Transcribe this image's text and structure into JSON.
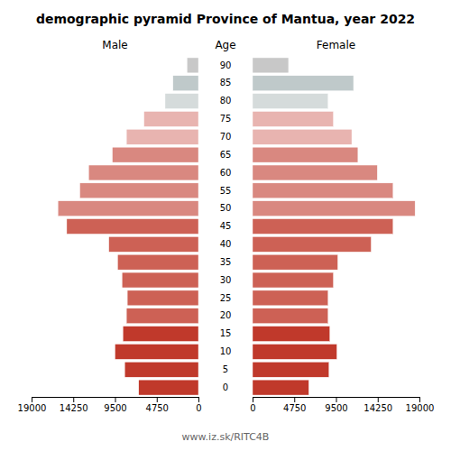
{
  "chart_data": {
    "type": "bar",
    "orientation": "horizontal",
    "title": "demographic pyramid Province of Mantua, year 2022",
    "ylabel": "Age",
    "annotations": [
      "www.iz.sk/RITC4B"
    ],
    "categories": [
      "0",
      "5",
      "10",
      "15",
      "20",
      "25",
      "30",
      "35",
      "40",
      "45",
      "50",
      "55",
      "60",
      "65",
      "70",
      "75",
      "80",
      "85",
      "90"
    ],
    "colors": [
      "#c0392b",
      "#c0392b",
      "#c0392b",
      "#c0392b",
      "#cd6155",
      "#cd6155",
      "#cd6155",
      "#cd6155",
      "#cd6155",
      "#cd6155",
      "#d98880",
      "#d98880",
      "#d98880",
      "#d98880",
      "#e8b4b0",
      "#e8b4b0",
      "#d5dbdb",
      "#bfc9ca",
      "#c8c8c8"
    ],
    "series": [
      {
        "name": "Male",
        "values": [
          6800,
          8400,
          9500,
          8600,
          8200,
          8100,
          8700,
          9200,
          10200,
          15000,
          16000,
          13500,
          12500,
          9800,
          8200,
          6200,
          3800,
          2900,
          1300
        ]
      },
      {
        "name": "Female",
        "values": [
          6400,
          8700,
          9600,
          8800,
          8600,
          8600,
          9200,
          9700,
          13500,
          16000,
          18500,
          16000,
          14200,
          12000,
          11300,
          9200,
          8600,
          11500,
          4100
        ]
      }
    ],
    "xlim": [
      0,
      19000
    ],
    "xticks": [
      0,
      4750,
      9500,
      14250,
      19000
    ],
    "grid": false
  }
}
